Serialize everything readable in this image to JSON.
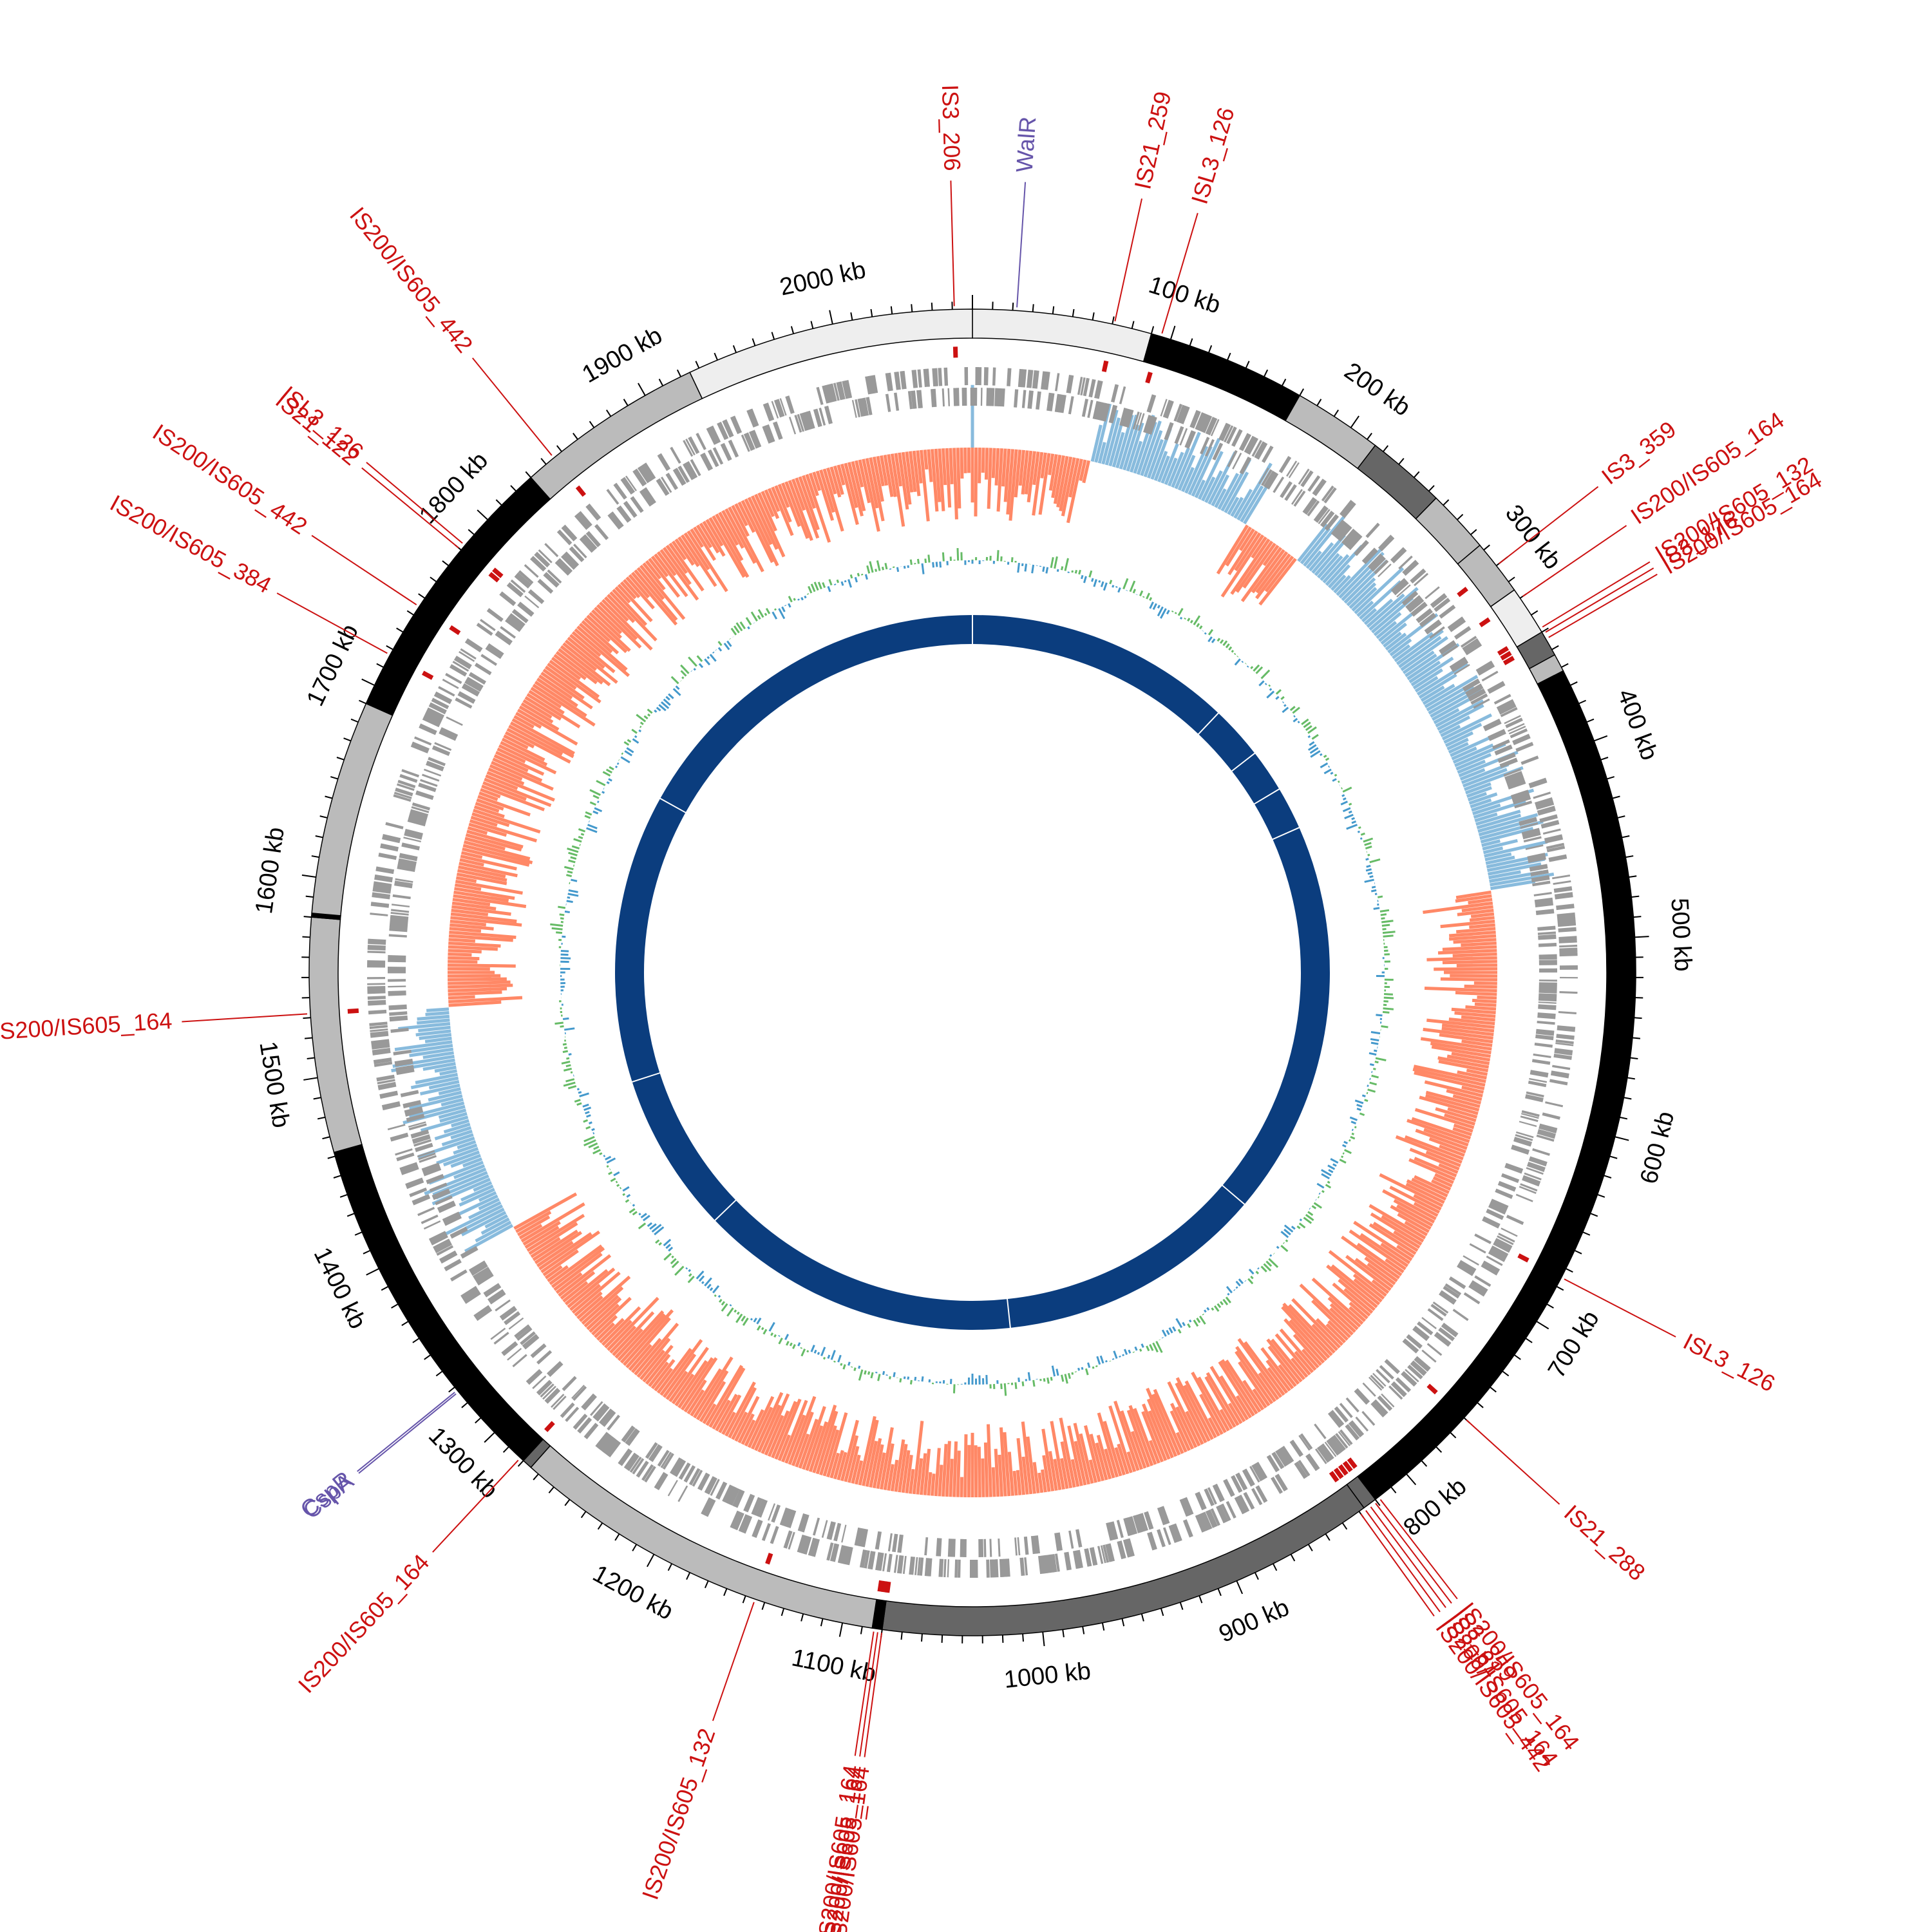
{
  "genome": {
    "length_kb": 2070,
    "tick_labels": [
      {
        "kb": 100,
        "text": "100 kb"
      },
      {
        "kb": 200,
        "text": "200 kb"
      },
      {
        "kb": 300,
        "text": "300 kb"
      },
      {
        "kb": 400,
        "text": "400 kb"
      },
      {
        "kb": 500,
        "text": "500 kb"
      },
      {
        "kb": 600,
        "text": "600 kb"
      },
      {
        "kb": 700,
        "text": "700 kb"
      },
      {
        "kb": 800,
        "text": "800 kb"
      },
      {
        "kb": 900,
        "text": "900 kb"
      },
      {
        "kb": 1000,
        "text": "1000 kb"
      },
      {
        "kb": 1100,
        "text": "1100 kb"
      },
      {
        "kb": 1200,
        "text": "1200 kb"
      },
      {
        "kb": 1300,
        "text": "1300 kb"
      },
      {
        "kb": 1400,
        "text": "1400 kb"
      },
      {
        "kb": 1500,
        "text": "1500 kb"
      },
      {
        "kb": 1600,
        "text": "1600 kb"
      },
      {
        "kb": 1700,
        "text": "1700 kb"
      },
      {
        "kb": 1800,
        "text": "1800 kb"
      },
      {
        "kb": 1900,
        "text": "1900 kb"
      },
      {
        "kb": 2000,
        "text": "2000 kb"
      }
    ]
  },
  "contigs": [
    {
      "start": 0,
      "end": 90,
      "color": "#eeeeee"
    },
    {
      "start": 90,
      "end": 170,
      "color": "#000000"
    },
    {
      "start": 170,
      "end": 215,
      "color": "#bbbbbb"
    },
    {
      "start": 215,
      "end": 255,
      "color": "#666666"
    },
    {
      "start": 255,
      "end": 287,
      "color": "#bbbbbb"
    },
    {
      "start": 287,
      "end": 315,
      "color": "#bbbbbb"
    },
    {
      "start": 315,
      "end": 340,
      "color": "#eeeeee"
    },
    {
      "start": 340,
      "end": 353,
      "color": "#666666"
    },
    {
      "start": 353,
      "end": 362,
      "color": "#bbbbbb"
    },
    {
      "start": 362,
      "end": 820,
      "color": "#000000"
    },
    {
      "start": 820,
      "end": 827,
      "color": "#666666"
    },
    {
      "start": 827,
      "end": 1080,
      "color": "#666666"
    },
    {
      "start": 1080,
      "end": 1085,
      "color": "#000000"
    },
    {
      "start": 1085,
      "end": 1275,
      "color": "#bbbbbb"
    },
    {
      "start": 1275,
      "end": 1280,
      "color": "#666666"
    },
    {
      "start": 1280,
      "end": 1462,
      "color": "#000000"
    },
    {
      "start": 1462,
      "end": 1580,
      "color": "#bbbbbb"
    },
    {
      "start": 1580,
      "end": 1582,
      "color": "#000000"
    },
    {
      "start": 1582,
      "end": 1690,
      "color": "#bbbbbb"
    },
    {
      "start": 1690,
      "end": 1830,
      "color": "#000000"
    },
    {
      "start": 1830,
      "end": 1925,
      "color": "#bbbbbb"
    },
    {
      "start": 1925,
      "end": 2070,
      "color": "#eeeeee"
    }
  ],
  "features": [
    {
      "kb": 2061,
      "text": "IS3_206",
      "color": "#cc1111"
    },
    {
      "kb": 22,
      "text": "WalR",
      "color": "#6655aa"
    },
    {
      "kb": 71,
      "text": "IS21_259",
      "color": "#cc1111"
    },
    {
      "kb": 95,
      "text": "ISL3_126",
      "color": "#cc1111"
    },
    {
      "kb": 300,
      "text": "IS3_359",
      "color": "#cc1111"
    },
    {
      "kb": 320,
      "text": "IS200/IS605_164",
      "color": "#cc1111"
    },
    {
      "kb": 338,
      "text": "IS200/IS605_132",
      "color": "#cc1111"
    },
    {
      "kb": 341,
      "text": "IS3_176",
      "color": "#cc1111"
    },
    {
      "kb": 344,
      "text": "IS200/IS605_164",
      "color": "#cc1111"
    },
    {
      "kb": 675,
      "text": "ISL3_126",
      "color": "#cc1111"
    },
    {
      "kb": 760,
      "text": "IS21_288",
      "color": "#cc1111"
    },
    {
      "kb": 818,
      "text": "IS200/IS605_164",
      "color": "#cc1111"
    },
    {
      "kb": 821,
      "text": "IS3_359",
      "color": "#cc1111"
    },
    {
      "kb": 824,
      "text": "IS3_61",
      "color": "#cc1111"
    },
    {
      "kb": 827,
      "text": "IS200/IS605_164",
      "color": "#cc1111"
    },
    {
      "kb": 830,
      "text": "IS200/IS605_442",
      "color": "#cc1111"
    },
    {
      "kb": 1080,
      "text": "IS200/IS605_164",
      "color": "#cc1111"
    },
    {
      "kb": 1082,
      "text": "IS200/IS605_164",
      "color": "#cc1111"
    },
    {
      "kb": 1084,
      "text": "IS200/IS605_164",
      "color": "#cc1111"
    },
    {
      "kb": 1145,
      "text": "IS200/IS605_132",
      "color": "#cc1111"
    },
    {
      "kb": 1282,
      "text": "IS200/IS605_164",
      "color": "#cc1111"
    },
    {
      "kb": 1327,
      "text": "CspA",
      "color": "#6655aa"
    },
    {
      "kb": 1328,
      "text": "CspR",
      "color": "#6655aa"
    },
    {
      "kb": 1532,
      "text": "IS200/IS605_164",
      "color": "#cc1111"
    },
    {
      "kb": 1717,
      "text": "IS200/IS605_384",
      "color": "#cc1111"
    },
    {
      "kb": 1745,
      "text": "IS200/IS605_442",
      "color": "#cc1111"
    },
    {
      "kb": 1780,
      "text": "IS21_122",
      "color": "#cc1111"
    },
    {
      "kb": 1783,
      "text": "ISL3_126",
      "color": "#cc1111"
    },
    {
      "kb": 1845,
      "text": "IS200/IS605_442",
      "color": "#cc1111"
    }
  ],
  "colors": {
    "gc_content_high": "#ff8866",
    "gc_content_low": "#88bbdd",
    "gc_skew_pos": "#66bb66",
    "gc_skew_neg": "#4499cc",
    "inner_ring": "#0b3d7e",
    "genes": "#999999",
    "is_marks": "#cc1111"
  }
}
